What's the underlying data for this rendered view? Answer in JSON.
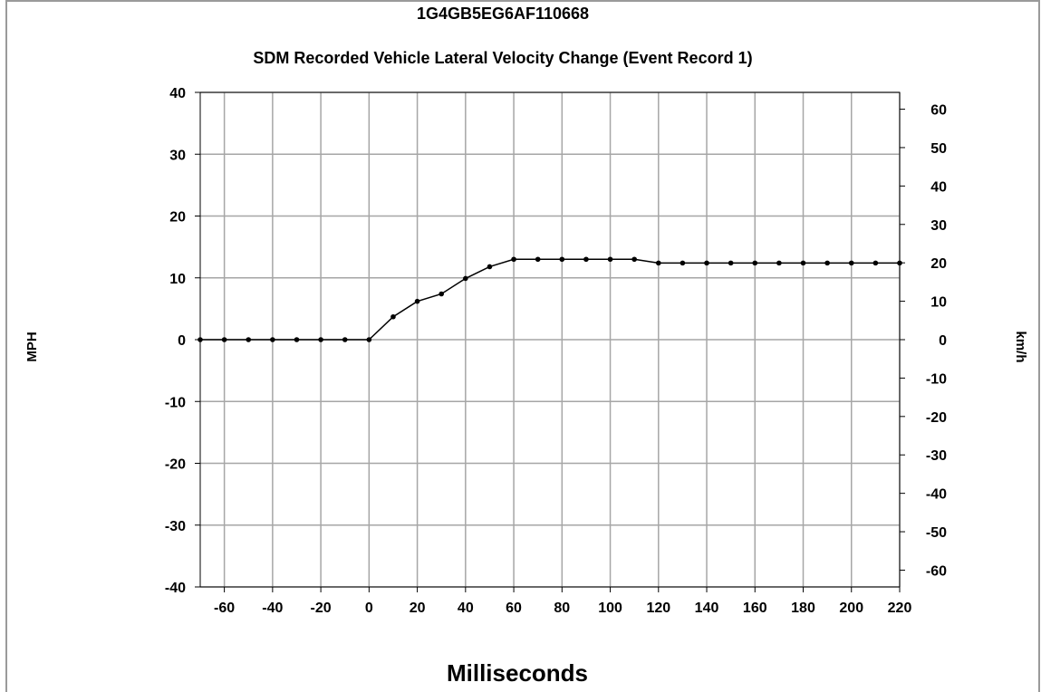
{
  "chart_data": {
    "type": "line",
    "title": "1G4GB5EG6AF110668",
    "subtitle": "SDM Recorded Vehicle Lateral Velocity Change (Event Record 1)",
    "xlabel": "Milliseconds",
    "ylabel": "MPH",
    "ylabel_right": "km/h",
    "xlim": [
      -70,
      220
    ],
    "ylim": [
      -40,
      40
    ],
    "ylim_right_kmh": [
      -64.37,
      64.37
    ],
    "x_ticks": [
      -60,
      -40,
      -20,
      0,
      20,
      40,
      60,
      80,
      100,
      120,
      140,
      160,
      180,
      200,
      220
    ],
    "y_ticks": [
      -40,
      -30,
      -20,
      -10,
      0,
      10,
      20,
      30,
      40
    ],
    "y_ticks_right": [
      -60,
      -50,
      -40,
      -30,
      -20,
      -10,
      0,
      10,
      20,
      30,
      40,
      50,
      60
    ],
    "grid": true,
    "legend": "none",
    "series": [
      {
        "color": "#000000",
        "marker": "circle",
        "x": [
          -70,
          -60,
          -50,
          -40,
          -30,
          -20,
          -10,
          0,
          10,
          20,
          30,
          40,
          50,
          60,
          70,
          80,
          90,
          100,
          110,
          120,
          130,
          140,
          150,
          160,
          170,
          180,
          190,
          200,
          210,
          220
        ],
        "y": [
          0,
          0,
          0,
          0,
          0,
          0,
          0,
          0,
          3.7,
          6.2,
          7.4,
          9.9,
          11.8,
          13.0,
          13.0,
          13.0,
          13.0,
          13.0,
          13.0,
          12.4,
          12.4,
          12.4,
          12.4,
          12.4,
          12.4,
          12.4,
          12.4,
          12.4,
          12.4,
          12.4
        ]
      }
    ]
  }
}
